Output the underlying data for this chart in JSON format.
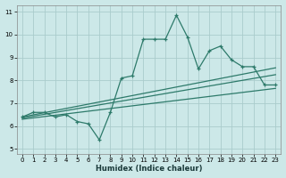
{
  "xlabel": "Humidex (Indice chaleur)",
  "bg_color": "#cce8e8",
  "line_color": "#2d7a6a",
  "grid_color": "#aacccc",
  "xlim": [
    -0.5,
    23.5
  ],
  "ylim": [
    4.8,
    11.3
  ],
  "xticks": [
    0,
    1,
    2,
    3,
    4,
    5,
    6,
    7,
    8,
    9,
    10,
    11,
    12,
    13,
    14,
    15,
    16,
    17,
    18,
    19,
    20,
    21,
    22,
    23
  ],
  "yticks": [
    5,
    6,
    7,
    8,
    9,
    10,
    11
  ],
  "main_x": [
    0,
    1,
    2,
    3,
    4,
    5,
    6,
    7,
    8,
    9,
    10,
    11,
    12,
    13,
    14,
    15,
    16,
    17,
    18,
    19,
    20,
    21,
    22,
    23
  ],
  "main_y": [
    6.4,
    6.6,
    6.6,
    6.4,
    6.5,
    6.2,
    6.1,
    5.4,
    6.6,
    8.1,
    8.2,
    9.8,
    9.8,
    9.8,
    10.85,
    9.9,
    8.5,
    9.3,
    9.5,
    8.9,
    8.6,
    8.6,
    7.8,
    7.8
  ],
  "trend1_x": [
    0,
    23
  ],
  "trend1_y": [
    6.4,
    8.55
  ],
  "trend2_x": [
    0,
    23
  ],
  "trend2_y": [
    6.35,
    8.25
  ],
  "trend3_x": [
    0,
    23
  ],
  "trend3_y": [
    6.3,
    7.65
  ]
}
